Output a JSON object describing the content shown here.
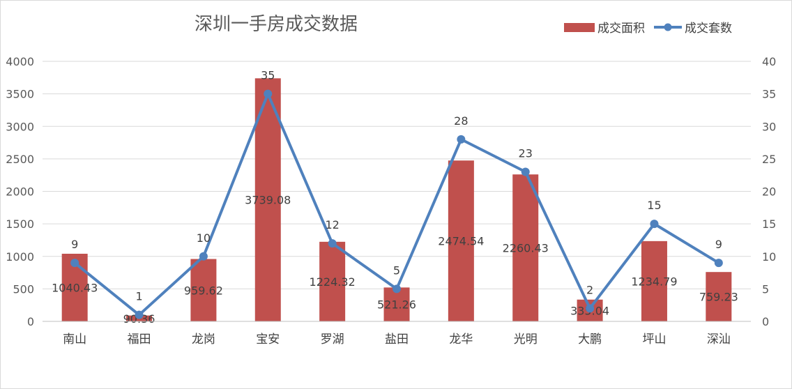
{
  "chart_data": {
    "type": "bar",
    "title": "深圳一手房成交数据",
    "categories": [
      "南山",
      "福田",
      "龙岗",
      "宝安",
      "罗湖",
      "盐田",
      "龙华",
      "光明",
      "大鹏",
      "坪山",
      "深汕"
    ],
    "series": [
      {
        "name": "成交面积",
        "type": "bar",
        "axis": "left",
        "color": "#c0504d",
        "values": [
          1040.43,
          90.36,
          959.62,
          3739.08,
          1224.32,
          521.26,
          2474.54,
          2260.43,
          335.04,
          1234.79,
          759.23
        ],
        "labels": [
          "1040.43",
          "90.36",
          "959.62",
          "3739.08",
          "1224.32",
          "521.26",
          "2474.54",
          "2260.43",
          "335.04",
          "1234.79",
          "759.23"
        ]
      },
      {
        "name": "成交套数",
        "type": "line",
        "axis": "right",
        "color": "#4f81bd",
        "values": [
          9,
          1,
          10,
          35,
          12,
          5,
          28,
          23,
          2,
          15,
          9
        ],
        "labels": [
          "9",
          "1",
          "10",
          "35",
          "12",
          "5",
          "28",
          "23",
          "2",
          "15",
          "9"
        ]
      }
    ],
    "ylim": [
      0,
      4000
    ],
    "y_ticks": [
      "0",
      "500",
      "1000",
      "1500",
      "2000",
      "2500",
      "3000",
      "3500",
      "4000"
    ],
    "y2lim": [
      0,
      40
    ],
    "y2_ticks": [
      "0",
      "5",
      "10",
      "15",
      "20",
      "25",
      "30",
      "35",
      "40"
    ],
    "grid": true,
    "legend_position": "top-right"
  }
}
